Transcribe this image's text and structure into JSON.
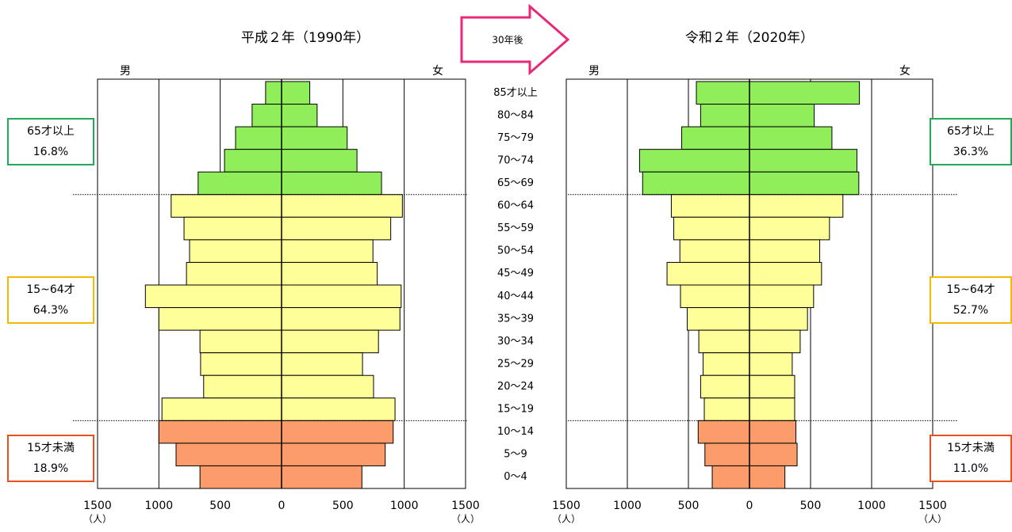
{
  "arrow_label": "30年後",
  "chart_data": [
    {
      "type": "pyramid",
      "title": "平成２年（1990年）",
      "categories": [
        "85才以上",
        "80～84",
        "75～79",
        "70～74",
        "65～69",
        "60～64",
        "55～59",
        "50～54",
        "45～49",
        "40～44",
        "35～39",
        "30～34",
        "25～29",
        "20～24",
        "15～19",
        "10～14",
        "5～9",
        "0～4"
      ],
      "series": [
        {
          "name": "男",
          "values": [
            130,
            240,
            375,
            465,
            680,
            900,
            795,
            750,
            775,
            1110,
            1000,
            665,
            660,
            635,
            975,
            1000,
            860,
            665
          ]
        },
        {
          "name": "女",
          "values": [
            230,
            290,
            535,
            615,
            815,
            985,
            890,
            745,
            780,
            975,
            965,
            790,
            660,
            750,
            925,
            910,
            845,
            655
          ]
        }
      ],
      "bar_colors": [
        "#90ee5a",
        "#90ee5a",
        "#90ee5a",
        "#90ee5a",
        "#90ee5a",
        "#ffff99",
        "#ffff99",
        "#ffff99",
        "#ffff99",
        "#ffff99",
        "#ffff99",
        "#ffff99",
        "#ffff99",
        "#ffff99",
        "#ffff99",
        "#fb9c6a",
        "#fb9c6a",
        "#fb9c6a"
      ],
      "xlim": [
        0,
        1500
      ],
      "xticks": [
        0,
        500,
        1000,
        1500
      ],
      "x_unit": "（人）",
      "groups": {
        "names": [
          "65才以上",
          "15~64才",
          "15才未満"
        ],
        "values": [
          16.8,
          64.3,
          18.9
        ],
        "value_labels": [
          "16.8%",
          "64.3%",
          "18.9%"
        ],
        "colors": [
          "#22aa55",
          "#f5b700",
          "#e85020"
        ]
      }
    },
    {
      "type": "pyramid",
      "title": "令和２年（2020年）",
      "series": [
        {
          "name": "男",
          "values": [
            435,
            400,
            555,
            900,
            875,
            640,
            620,
            570,
            675,
            565,
            510,
            415,
            380,
            400,
            370,
            420,
            365,
            305
          ]
        },
        {
          "name": "女",
          "values": [
            900,
            530,
            675,
            880,
            895,
            765,
            655,
            575,
            590,
            525,
            475,
            415,
            350,
            370,
            370,
            380,
            390,
            290
          ]
        }
      ],
      "bar_colors": [
        "#90ee5a",
        "#90ee5a",
        "#90ee5a",
        "#90ee5a",
        "#90ee5a",
        "#ffff99",
        "#ffff99",
        "#ffff99",
        "#ffff99",
        "#ffff99",
        "#ffff99",
        "#ffff99",
        "#ffff99",
        "#ffff99",
        "#ffff99",
        "#fb9c6a",
        "#fb9c6a",
        "#fb9c6a"
      ],
      "xlim": [
        0,
        1500
      ],
      "xticks": [
        0,
        500,
        1000,
        1500
      ],
      "x_unit": "（人）",
      "groups": {
        "names": [
          "65才以上",
          "15~64才",
          "15才未満"
        ],
        "values": [
          36.3,
          52.7,
          11.0
        ],
        "value_labels": [
          "36.3%",
          "52.7%",
          "11.0%"
        ],
        "colors": [
          "#22aa55",
          "#f5b700",
          "#e85020"
        ]
      }
    }
  ]
}
